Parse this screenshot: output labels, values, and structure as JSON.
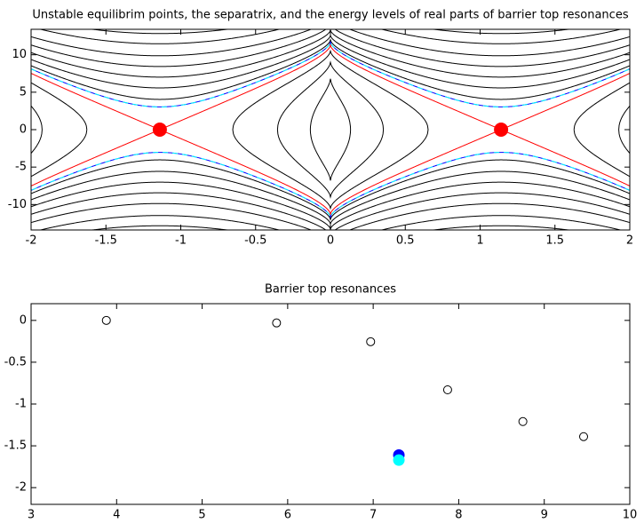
{
  "chart_data": [
    {
      "type": "contour",
      "title": "Unstable equilibrim points, the separatrix, and the energy levels of real parts of barrier top resonances",
      "xlim": [
        -2,
        2
      ],
      "ylim": [
        -13.4,
        13.4
      ],
      "xticks": [
        -2,
        -1.5,
        -1,
        -0.5,
        0,
        0.5,
        1,
        1.5,
        2
      ],
      "yticks": [
        -10,
        -5,
        0,
        5,
        10
      ],
      "levels": [
        6.8,
        9,
        10.5,
        12,
        12.6,
        13.3,
        14.1,
        15,
        16.1,
        17.1
      ],
      "color": "#000000",
      "separatrix": 11.3,
      "separatrix_color": "#ff0000",
      "resonance_levels": [
        11.7
      ],
      "resonance_color": "#0000ff",
      "resonance_dash_color": "#00ffff",
      "equilibria": {
        "x": [
          -1.14,
          1.14
        ],
        "y": [
          0,
          0
        ],
        "color": "#ff0000"
      }
    },
    {
      "type": "scatter",
      "title": "Barrier top resonances",
      "xlim": [
        3,
        10
      ],
      "ylim": [
        -2.2,
        0.2
      ],
      "xticks": [
        3,
        4,
        5,
        6,
        7,
        8,
        9,
        10
      ],
      "yticks": [
        0,
        -0.5,
        -1,
        -1.5,
        -2
      ],
      "series": [
        {
          "color": "#000000",
          "filled": false,
          "x": [
            3.88,
            5.87,
            6.97,
            7.87,
            8.75,
            9.46
          ],
          "y": [
            0,
            -0.03,
            -0.255,
            -0.83,
            -1.21,
            -1.39
          ]
        },
        {
          "color": "#0000ff",
          "filled": true,
          "x": [
            7.3
          ],
          "y": [
            -1.61
          ]
        },
        {
          "color": "#00ffff",
          "filled": true,
          "x": [
            7.3
          ],
          "y": [
            -1.67
          ]
        }
      ]
    }
  ]
}
